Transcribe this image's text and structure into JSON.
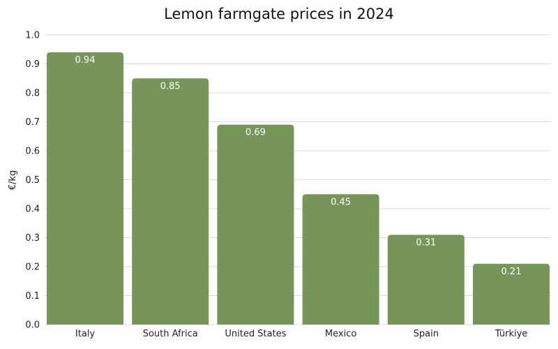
{
  "chart_data": {
    "type": "bar",
    "title": "Lemon farmgate prices in 2024",
    "xlabel": "",
    "ylabel": "€/kg",
    "categories": [
      "Italy",
      "South Africa",
      "United States",
      "Mexico",
      "Spain",
      "Türkiye"
    ],
    "values": [
      0.94,
      0.85,
      0.69,
      0.45,
      0.31,
      0.21
    ],
    "data_labels": [
      "0.94",
      "0.85",
      "0.69",
      "0.45",
      "0.31",
      "0.21"
    ],
    "ylim": [
      0,
      1.0
    ],
    "yticks": [
      0.0,
      0.1,
      0.2,
      0.3,
      0.4,
      0.5,
      0.6,
      0.7,
      0.8,
      0.9,
      1.0
    ],
    "ytick_labels": [
      "0.0",
      "0.1",
      "0.2",
      "0.3",
      "0.4",
      "0.5",
      "0.6",
      "0.7",
      "0.8",
      "0.9",
      "1.0"
    ],
    "grid": true,
    "legend": "none",
    "bar_color": "#77945a",
    "grid_color": "#d9d9d9"
  }
}
